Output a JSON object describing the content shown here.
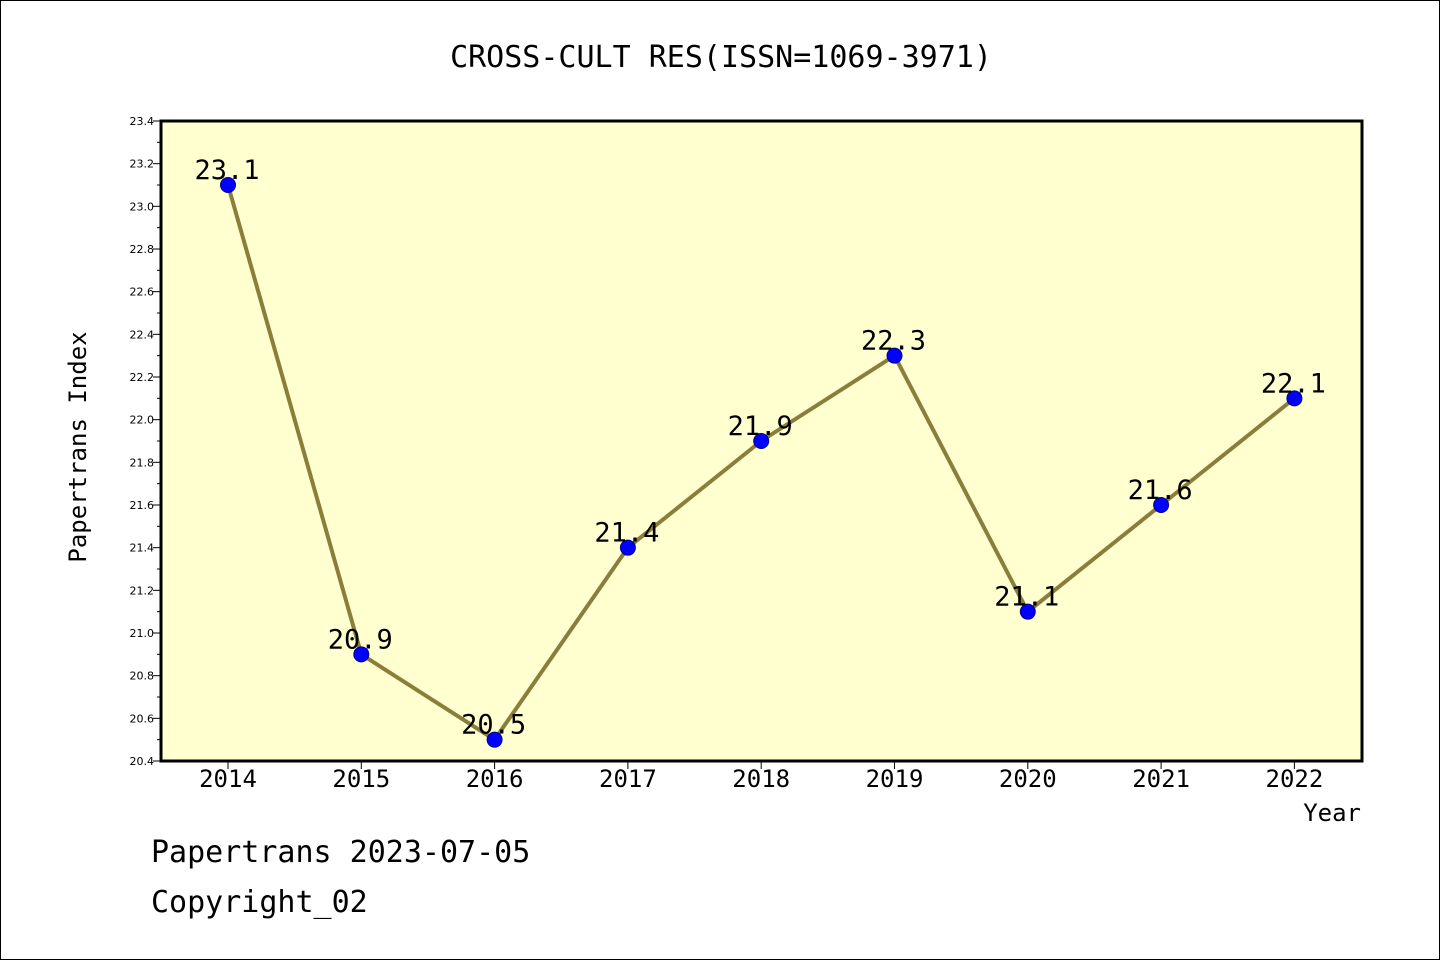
{
  "chart_data": {
    "type": "line",
    "title": "CROSS-CULT RES(ISSN=1069-3971)",
    "xlabel": "Year",
    "ylabel": "Papertrans Index",
    "categories": [
      "2014",
      "2015",
      "2016",
      "2017",
      "2018",
      "2019",
      "2020",
      "2021",
      "2022"
    ],
    "series": [
      {
        "values": [
          23.1,
          20.9,
          20.5,
          21.4,
          21.9,
          22.3,
          21.1,
          21.6,
          22.1
        ],
        "data_labels": [
          "23.1",
          "20.9",
          "20.5",
          "21.4",
          "21.9",
          "22.3",
          "21.1",
          "21.6",
          "22.1"
        ]
      }
    ],
    "ylim": [
      20.4,
      23.4
    ],
    "yticks": [
      "20.4",
      "20.6",
      "20.8",
      "21.0",
      "21.2",
      "21.4",
      "21.6",
      "21.8",
      "22.0",
      "22.2",
      "22.4",
      "22.6",
      "22.8",
      "23.0",
      "23.2",
      "23.4"
    ],
    "grid": false,
    "colors": {
      "plot_background": "#ffffd0",
      "line": "#8b7d3a",
      "marker": "#0000ff"
    }
  },
  "footer": {
    "line1": "Papertrans 2023-07-05",
    "line2": "Copyright_02"
  }
}
